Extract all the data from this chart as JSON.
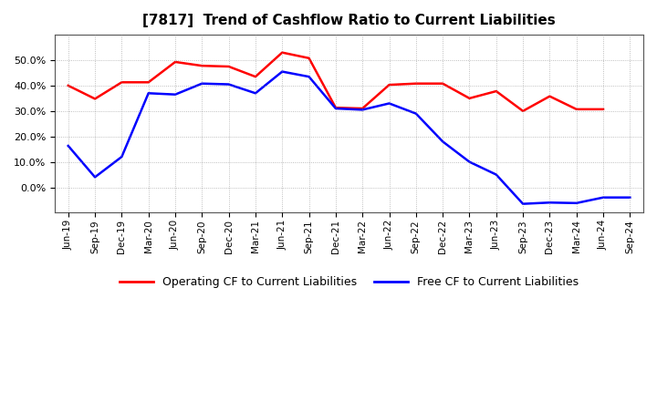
{
  "title": "[7817]  Trend of Cashflow Ratio to Current Liabilities",
  "x_labels": [
    "Jun-19",
    "Sep-19",
    "Dec-19",
    "Mar-20",
    "Jun-20",
    "Sep-20",
    "Dec-20",
    "Mar-21",
    "Jun-21",
    "Sep-21",
    "Dec-21",
    "Mar-22",
    "Jun-22",
    "Sep-22",
    "Dec-22",
    "Mar-23",
    "Jun-23",
    "Sep-23",
    "Dec-23",
    "Mar-24",
    "Jun-24",
    "Sep-24"
  ],
  "operating_cf": [
    0.4,
    0.348,
    0.413,
    0.413,
    0.493,
    0.478,
    0.475,
    0.435,
    0.53,
    0.508,
    0.313,
    0.31,
    0.403,
    0.408,
    0.408,
    0.35,
    0.378,
    0.3,
    0.358,
    0.307,
    0.307,
    null
  ],
  "free_cf": [
    0.163,
    0.04,
    0.12,
    0.37,
    0.365,
    0.408,
    0.405,
    0.37,
    0.455,
    0.435,
    0.31,
    0.305,
    0.33,
    0.29,
    0.18,
    0.1,
    0.05,
    -0.065,
    -0.06,
    -0.062,
    -0.04,
    -0.04
  ],
  "operating_cf_color": "#ff0000",
  "free_cf_color": "#0000ff",
  "ylim": [
    -0.1,
    0.6
  ],
  "yticks": [
    0.0,
    0.1,
    0.2,
    0.3,
    0.4,
    0.5
  ],
  "background_color": "#ffffff",
  "plot_bg_color": "#ffffff",
  "grid_color": "#888888",
  "legend_labels": [
    "Operating CF to Current Liabilities",
    "Free CF to Current Liabilities"
  ]
}
